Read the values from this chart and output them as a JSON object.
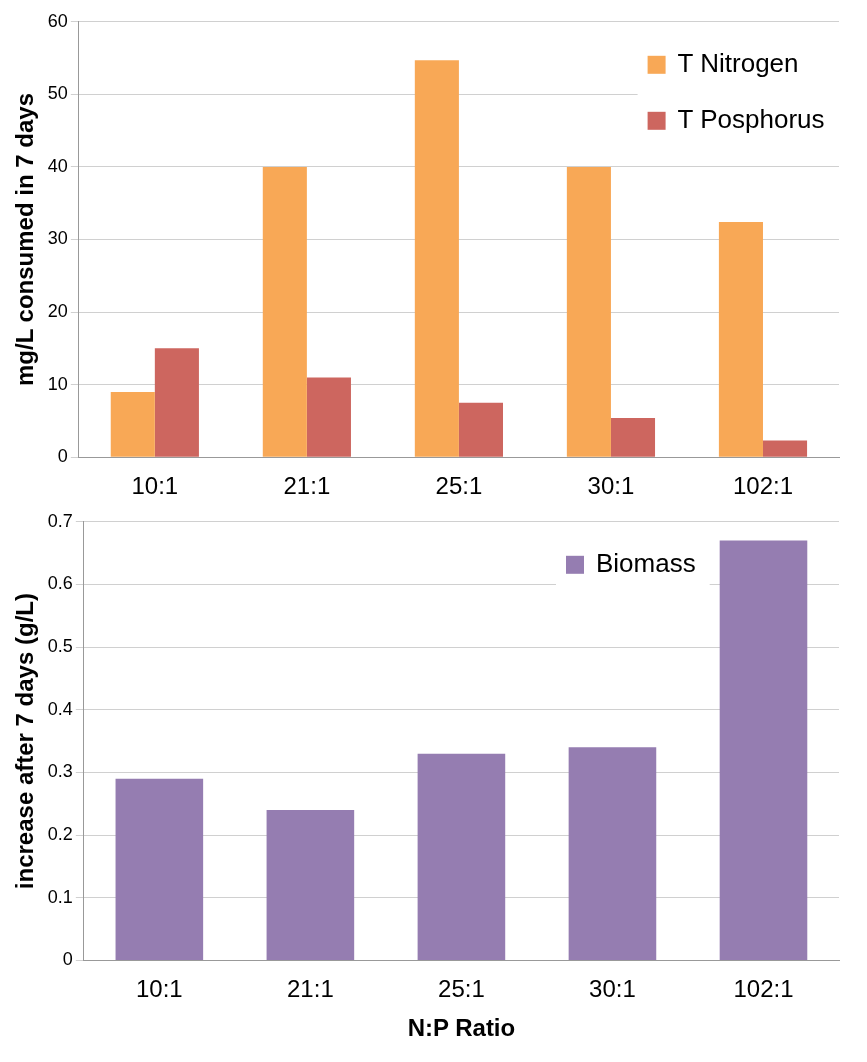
{
  "chart_data": [
    {
      "type": "bar",
      "ylabel": "mg/L consumed in 7 days",
      "categories": [
        "10:1",
        "21:1",
        "25:1",
        "30:1",
        "102:1"
      ],
      "series": [
        {
          "name": "T Nitrogen",
          "color": "#f8a856",
          "values": [
            9,
            40,
            54.7,
            40,
            32.4
          ]
        },
        {
          "name": "T Posphorus",
          "color": "#cd665f",
          "values": [
            15,
            11,
            7.5,
            5.4,
            2.3
          ]
        }
      ],
      "ylim": [
        0,
        60
      ],
      "yticks": [
        0,
        10,
        20,
        30,
        40,
        50,
        60
      ],
      "grid": "y",
      "legend": "top right"
    },
    {
      "type": "bar",
      "xlabel": "N:P Ratio",
      "ylabel": "increase after 7 days (g/L)",
      "categories": [
        "10:1",
        "21:1",
        "25:1",
        "30:1",
        "102:1"
      ],
      "series": [
        {
          "name": "Biomass",
          "color": "#957db1",
          "values": [
            0.29,
            0.24,
            0.33,
            0.34,
            0.67
          ]
        }
      ],
      "ylim": [
        0,
        0.7
      ],
      "yticks": [
        0,
        0.1,
        0.2,
        0.3,
        0.4,
        0.5,
        0.6,
        0.7
      ],
      "grid": "y",
      "legend": "top right"
    }
  ]
}
